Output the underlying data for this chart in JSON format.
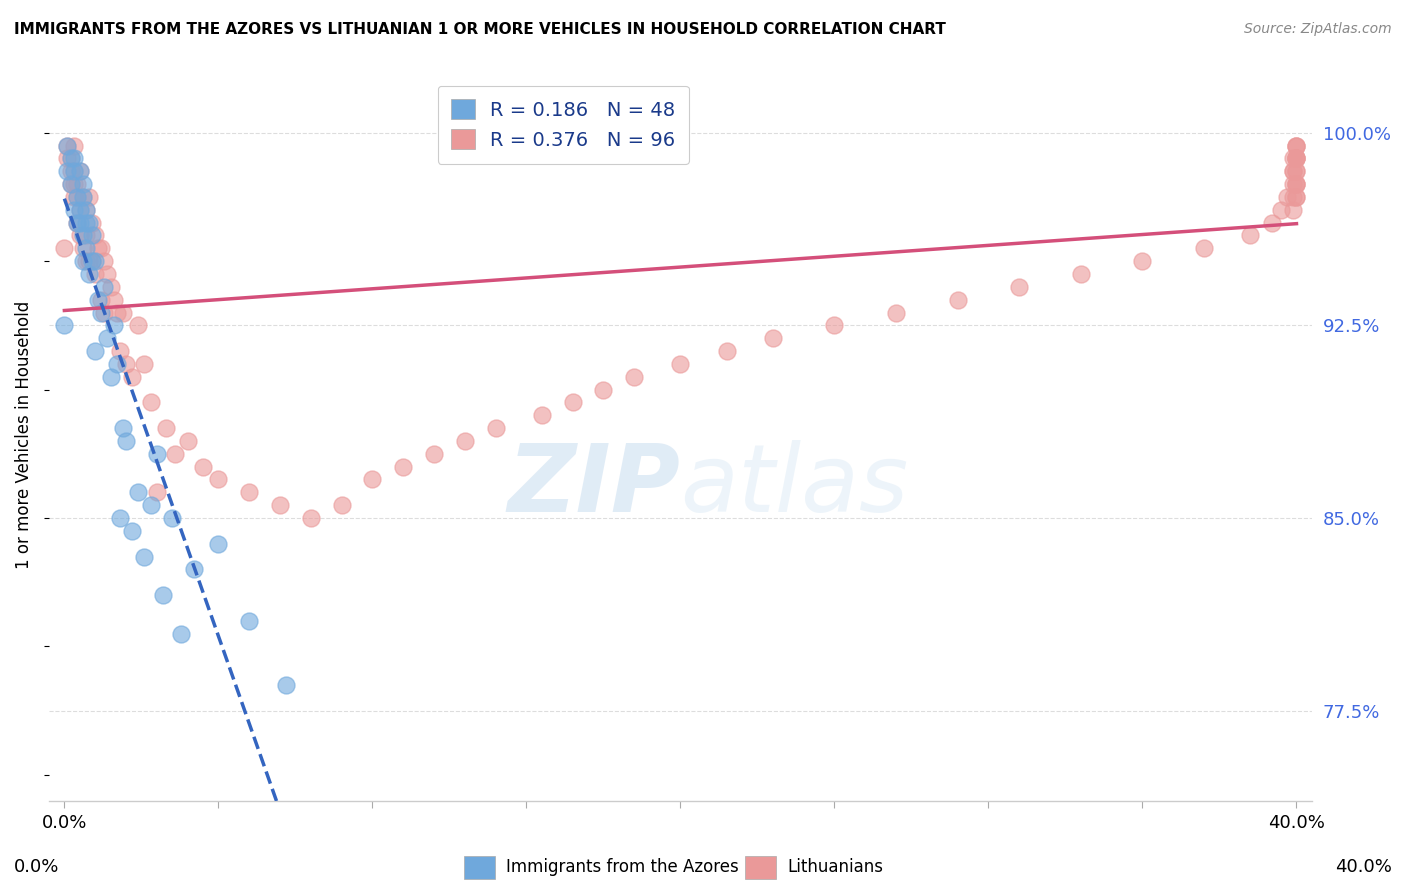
{
  "title": "IMMIGRANTS FROM THE AZORES VS LITHUANIAN 1 OR MORE VEHICLES IN HOUSEHOLD CORRELATION CHART",
  "source": "Source: ZipAtlas.com",
  "ylabel": "1 or more Vehicles in Household",
  "yticks": [
    77.5,
    85.0,
    92.5,
    100.0
  ],
  "ytick_labels": [
    "77.5%",
    "85.0%",
    "92.5%",
    "100.0%"
  ],
  "legend_label1": "Immigrants from the Azores",
  "legend_label2": "Lithuanians",
  "r1": 0.186,
  "n1": 48,
  "r2": 0.376,
  "n2": 96,
  "azores_color": "#6fa8dc",
  "lithuanian_color": "#ea9999",
  "azores_line_color": "#3465c0",
  "lithuanian_line_color": "#d44f7a",
  "azores_x": [
    0.0,
    0.001,
    0.001,
    0.002,
    0.002,
    0.003,
    0.003,
    0.003,
    0.004,
    0.004,
    0.005,
    0.005,
    0.005,
    0.006,
    0.006,
    0.006,
    0.006,
    0.007,
    0.007,
    0.007,
    0.008,
    0.008,
    0.009,
    0.009,
    0.01,
    0.01,
    0.011,
    0.012,
    0.013,
    0.014,
    0.015,
    0.016,
    0.017,
    0.018,
    0.019,
    0.02,
    0.022,
    0.024,
    0.026,
    0.028,
    0.03,
    0.032,
    0.035,
    0.038,
    0.042,
    0.05,
    0.06,
    0.072
  ],
  "azores_y": [
    92.5,
    99.5,
    98.5,
    99.0,
    98.0,
    99.0,
    98.5,
    97.0,
    97.5,
    96.5,
    98.5,
    97.0,
    96.5,
    98.0,
    97.5,
    96.0,
    95.0,
    97.0,
    96.5,
    95.5,
    96.5,
    94.5,
    96.0,
    95.0,
    95.0,
    91.5,
    93.5,
    93.0,
    94.0,
    92.0,
    90.5,
    92.5,
    91.0,
    85.0,
    88.5,
    88.0,
    84.5,
    86.0,
    83.5,
    85.5,
    87.5,
    82.0,
    85.0,
    80.5,
    83.0,
    84.0,
    81.0,
    78.5
  ],
  "lithuanian_x": [
    0.0,
    0.001,
    0.001,
    0.002,
    0.002,
    0.002,
    0.003,
    0.003,
    0.003,
    0.003,
    0.004,
    0.004,
    0.004,
    0.005,
    0.005,
    0.005,
    0.006,
    0.006,
    0.007,
    0.007,
    0.007,
    0.008,
    0.008,
    0.009,
    0.009,
    0.01,
    0.01,
    0.011,
    0.012,
    0.012,
    0.013,
    0.013,
    0.014,
    0.015,
    0.016,
    0.017,
    0.018,
    0.019,
    0.02,
    0.022,
    0.024,
    0.026,
    0.028,
    0.03,
    0.033,
    0.036,
    0.04,
    0.045,
    0.05,
    0.06,
    0.07,
    0.08,
    0.09,
    0.1,
    0.11,
    0.12,
    0.13,
    0.14,
    0.155,
    0.165,
    0.175,
    0.185,
    0.2,
    0.215,
    0.23,
    0.25,
    0.27,
    0.29,
    0.31,
    0.33,
    0.35,
    0.37,
    0.385,
    0.392,
    0.395,
    0.397,
    0.399,
    0.399,
    0.399,
    0.399,
    0.399,
    0.399,
    0.4,
    0.4,
    0.4,
    0.4,
    0.4,
    0.4,
    0.4,
    0.4,
    0.4,
    0.4,
    0.4,
    0.4,
    0.4,
    0.4
  ],
  "lithuanian_y": [
    95.5,
    99.5,
    99.0,
    99.0,
    98.5,
    98.0,
    99.5,
    98.5,
    98.0,
    97.5,
    98.0,
    97.5,
    96.5,
    98.5,
    97.0,
    96.0,
    97.5,
    95.5,
    97.0,
    96.0,
    95.0,
    97.5,
    95.0,
    96.5,
    95.0,
    96.0,
    94.5,
    95.5,
    95.5,
    93.5,
    95.0,
    93.0,
    94.5,
    94.0,
    93.5,
    93.0,
    91.5,
    93.0,
    91.0,
    90.5,
    92.5,
    91.0,
    89.5,
    86.0,
    88.5,
    87.5,
    88.0,
    87.0,
    86.5,
    86.0,
    85.5,
    85.0,
    85.5,
    86.5,
    87.0,
    87.5,
    88.0,
    88.5,
    89.0,
    89.5,
    90.0,
    90.5,
    91.0,
    91.5,
    92.0,
    92.5,
    93.0,
    93.5,
    94.0,
    94.5,
    95.0,
    95.5,
    96.0,
    96.5,
    97.0,
    97.5,
    97.0,
    98.0,
    98.5,
    97.5,
    98.5,
    99.0,
    99.5,
    99.0,
    98.5,
    98.0,
    99.0,
    97.5,
    99.5,
    98.0,
    99.0,
    98.5,
    97.5,
    99.0,
    98.0,
    99.5
  ],
  "xlim": [
    -0.005,
    0.405
  ],
  "ylim": [
    74.0,
    102.5
  ],
  "xtick_positions": [
    0.0,
    0.05,
    0.1,
    0.15,
    0.2,
    0.25,
    0.3,
    0.35,
    0.4
  ]
}
